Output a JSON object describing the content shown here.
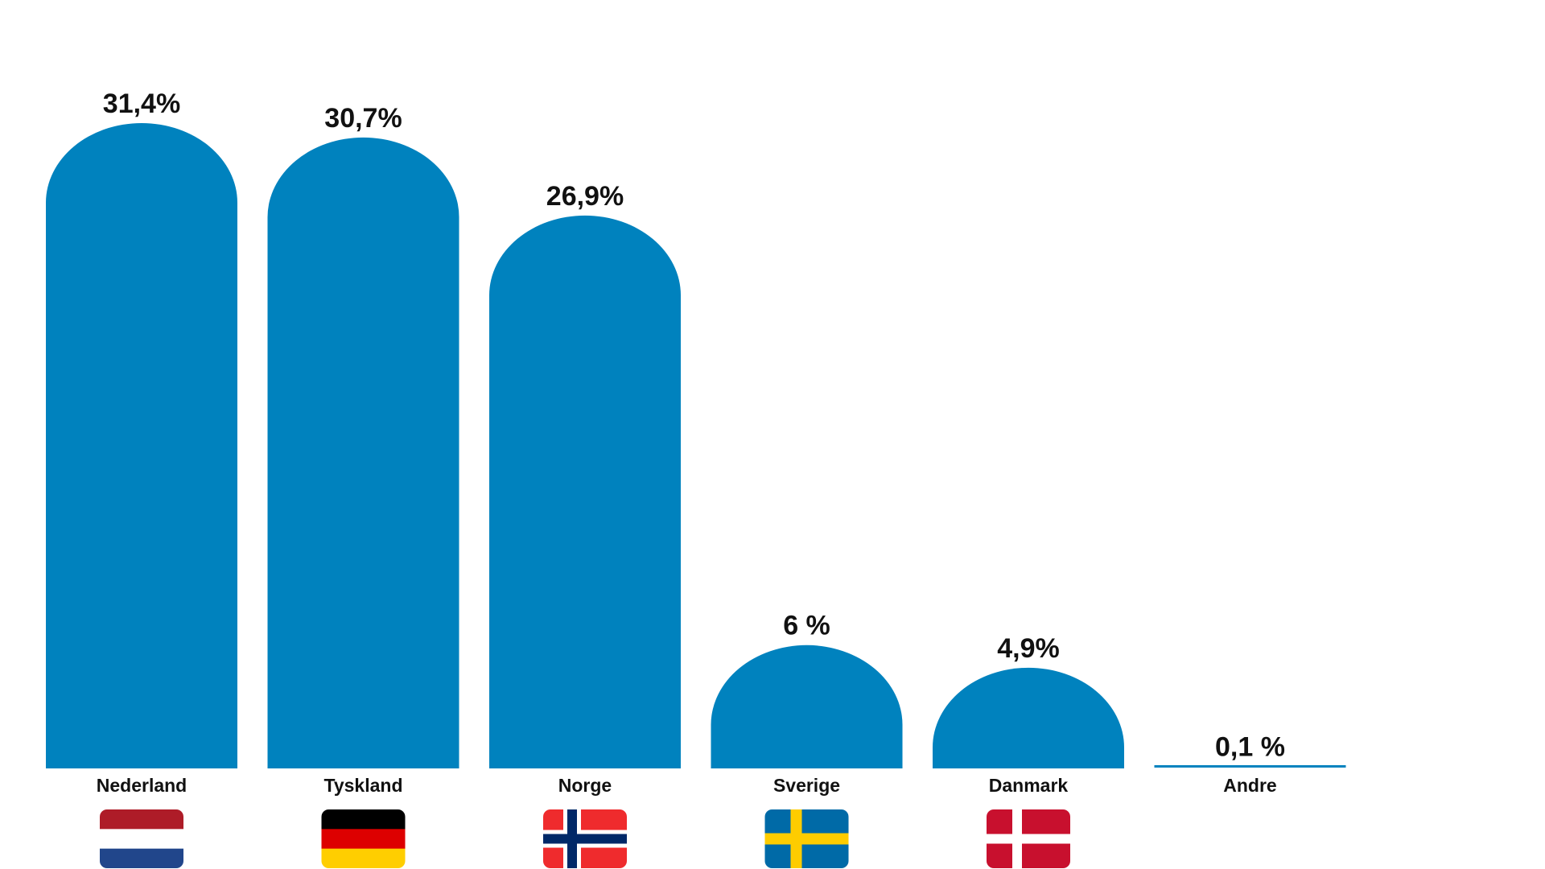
{
  "chart_data": {
    "type": "bar",
    "categories": [
      "Nederland",
      "Tyskland",
      "Norge",
      "Sverige",
      "Danmark",
      "Andre"
    ],
    "values": [
      31.4,
      30.7,
      26.9,
      6,
      4.9,
      0.1
    ],
    "value_labels": [
      "31,4%",
      "30,7%",
      "26,9%",
      "6 %",
      "4,9%",
      "0,1 %"
    ],
    "color": "#0082be",
    "ylim": [
      0,
      35
    ]
  }
}
